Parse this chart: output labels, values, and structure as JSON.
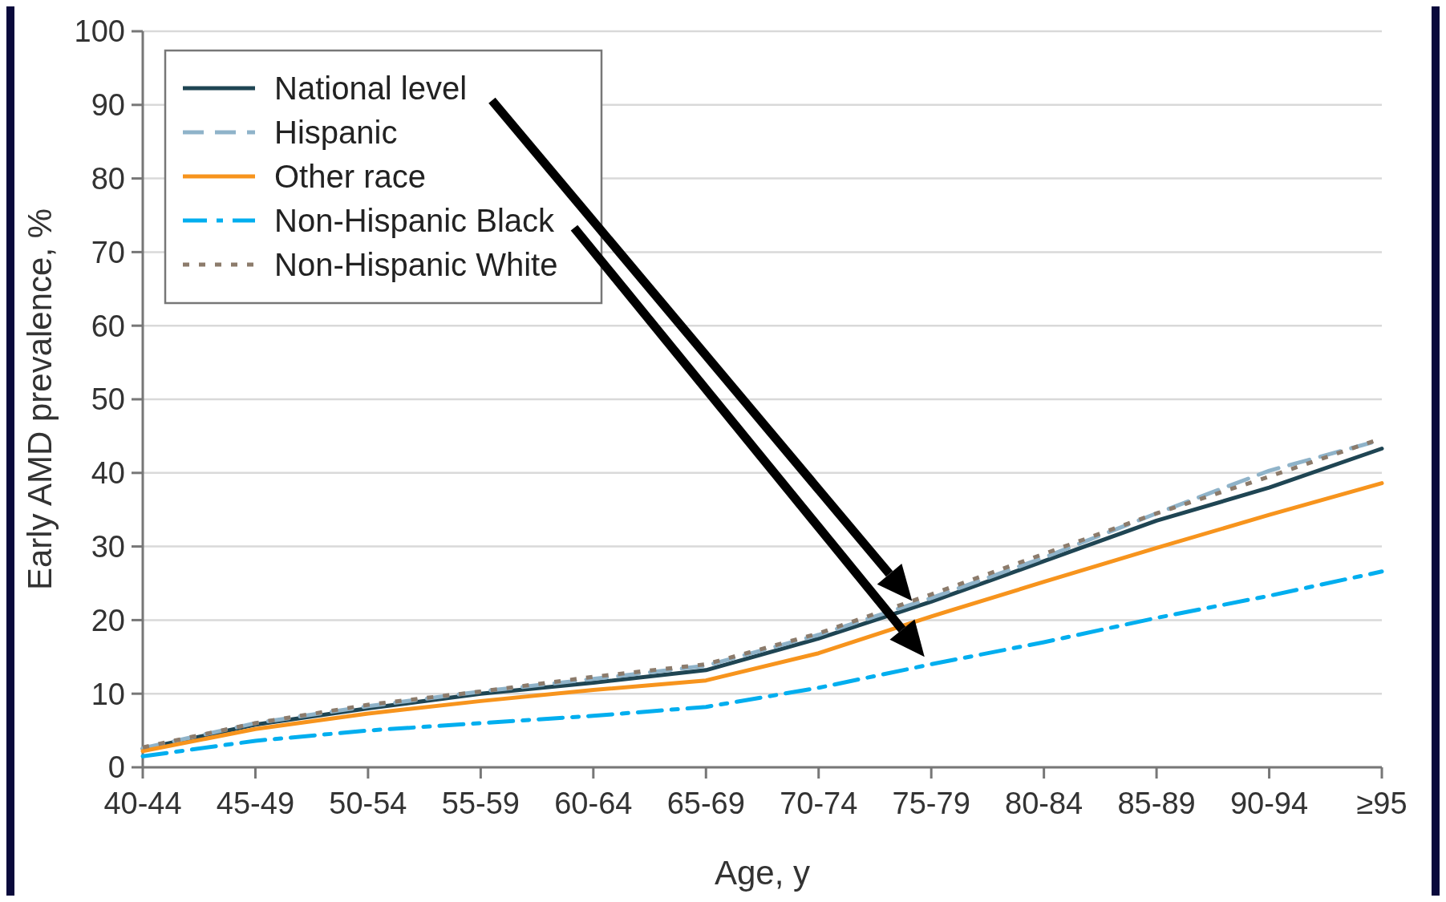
{
  "chart_data": {
    "type": "line",
    "xlabel": "Age, y",
    "ylabel": "Early AMD prevalence, %",
    "categories": [
      "40-44",
      "45-49",
      "50-54",
      "55-59",
      "60-64",
      "65-69",
      "70-74",
      "75-79",
      "80-84",
      "85-89",
      "90-94",
      "≥95"
    ],
    "series": [
      {
        "name": "National level",
        "color": "#1f4553",
        "line_style": "solid",
        "values": [
          2.5,
          5.8,
          8,
          10,
          11.5,
          13.2,
          17.5,
          22.5,
          28,
          33.5,
          38,
          43.3
        ]
      },
      {
        "name": "Hispanic",
        "color": "#8fb3c9",
        "line_style": "dashed",
        "values": [
          2.6,
          6,
          8.3,
          10.3,
          12,
          13.8,
          18,
          23,
          28.5,
          34.5,
          40.3,
          44.5
        ]
      },
      {
        "name": "Other race",
        "color": "#f7941d",
        "line_style": "solid",
        "values": [
          2.2,
          5.2,
          7.3,
          9,
          10.5,
          11.8,
          15.5,
          20.5,
          25.2,
          29.8,
          34.3,
          38.6
        ]
      },
      {
        "name": "Non-Hispanic Black",
        "color": "#00aeef",
        "line_style": "dashdot",
        "values": [
          1.5,
          3.6,
          5,
          6,
          7,
          8.2,
          10.8,
          14,
          17,
          20.3,
          23.3,
          26.6
        ]
      },
      {
        "name": "Non-Hispanic White",
        "color": "#8c7b6b",
        "line_style": "dotted",
        "values": [
          2.7,
          6,
          8.5,
          10.3,
          12.3,
          14,
          18.2,
          23.5,
          29,
          34.5,
          39.5,
          44.7
        ]
      }
    ],
    "ylim": [
      0,
      100
    ],
    "yticks": [
      0,
      10,
      20,
      30,
      40,
      50,
      60,
      70,
      80,
      90,
      100
    ],
    "grid": "y",
    "legend": "top left"
  }
}
